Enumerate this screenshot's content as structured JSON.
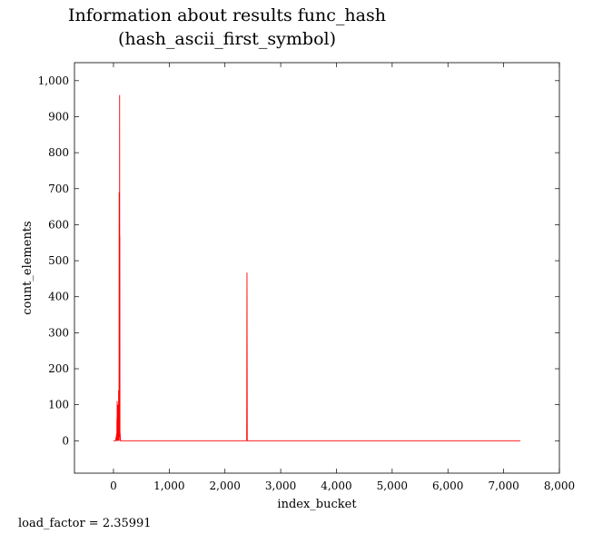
{
  "chart_data": {
    "type": "line",
    "title": "Information about results func_hash",
    "subtitle": "(hash_ascii_first_symbol)",
    "xlabel": "index_bucket",
    "ylabel": "count_elements",
    "xlim": [
      -700,
      8000
    ],
    "ylim": [
      -90,
      1050
    ],
    "xticks": [
      0,
      1000,
      2000,
      3000,
      4000,
      5000,
      6000,
      7000,
      8000
    ],
    "xtick_labels": [
      "0",
      "1,000",
      "2,000",
      "3,000",
      "4,000",
      "5,000",
      "6,000",
      "7,000",
      "8,000"
    ],
    "yticks": [
      0,
      100,
      200,
      300,
      400,
      500,
      600,
      700,
      800,
      900,
      1000
    ],
    "ytick_labels": [
      "0",
      "100",
      "200",
      "300",
      "400",
      "500",
      "600",
      "700",
      "800",
      "900",
      "1,000"
    ],
    "grid": false,
    "line_color": "#ff0000",
    "series": [
      {
        "values": [
          [
            0,
            0
          ],
          [
            40,
            0
          ],
          [
            45,
            10
          ],
          [
            50,
            0
          ],
          [
            55,
            20
          ],
          [
            60,
            0
          ],
          [
            62,
            60
          ],
          [
            64,
            0
          ],
          [
            66,
            110
          ],
          [
            68,
            0
          ],
          [
            70,
            40
          ],
          [
            72,
            0
          ],
          [
            75,
            70
          ],
          [
            78,
            0
          ],
          [
            80,
            100
          ],
          [
            82,
            10
          ],
          [
            84,
            30
          ],
          [
            86,
            0
          ],
          [
            88,
            80
          ],
          [
            90,
            10
          ],
          [
            92,
            140
          ],
          [
            94,
            20
          ],
          [
            96,
            60
          ],
          [
            98,
            0
          ],
          [
            100,
            120
          ],
          [
            102,
            690
          ],
          [
            104,
            10
          ],
          [
            106,
            250
          ],
          [
            108,
            100
          ],
          [
            110,
            960
          ],
          [
            112,
            530
          ],
          [
            114,
            570
          ],
          [
            116,
            40
          ],
          [
            118,
            0
          ],
          [
            120,
            20
          ],
          [
            125,
            0
          ],
          [
            2390,
            0
          ],
          [
            2395,
            467
          ],
          [
            2400,
            0
          ],
          [
            7300,
            0
          ]
        ]
      }
    ]
  },
  "footer": "load_factor = 2.35991"
}
